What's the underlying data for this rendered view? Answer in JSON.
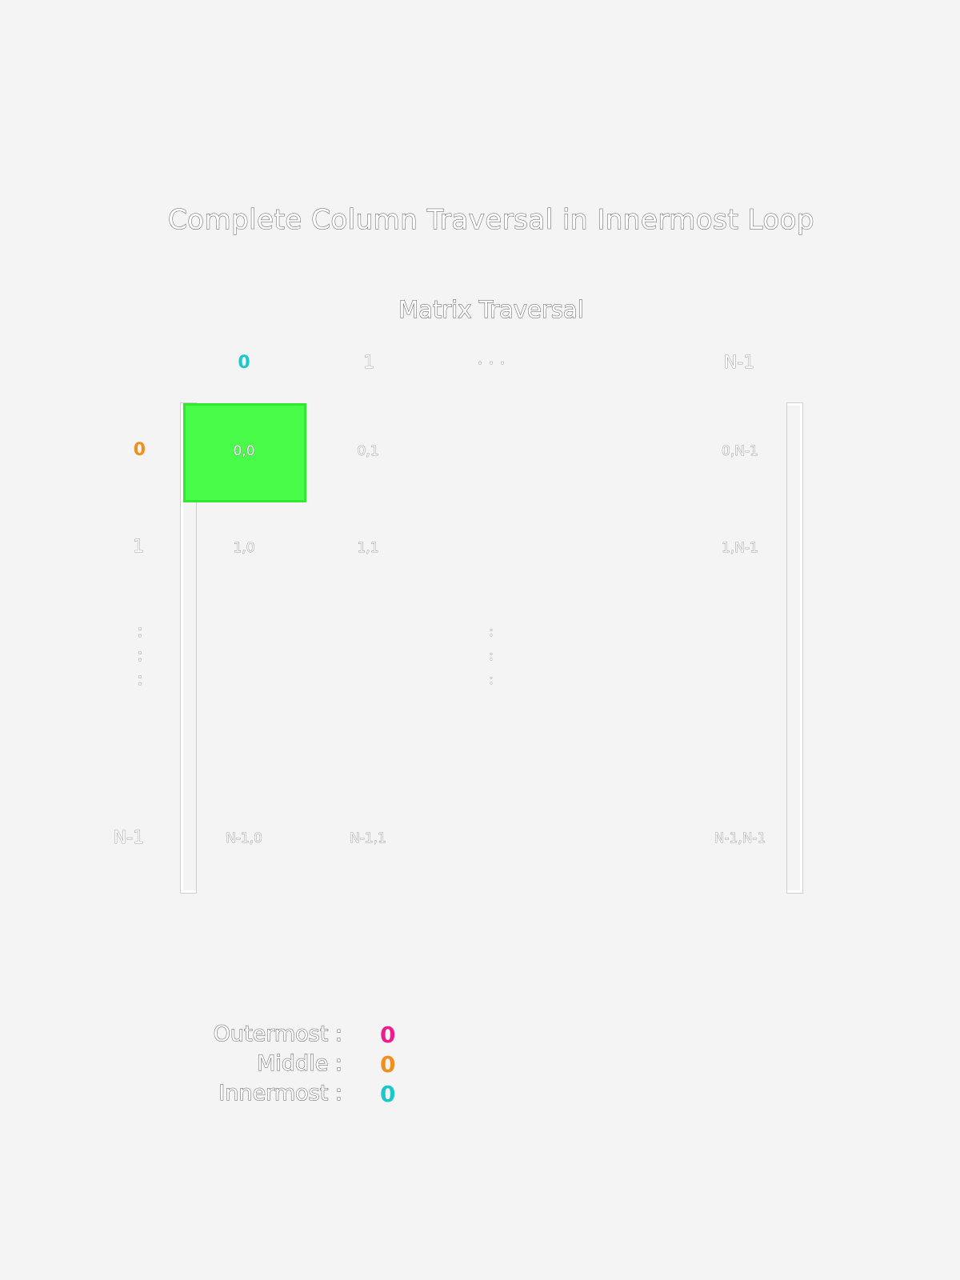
{
  "title": "Complete Column Traversal in Innermost Loop",
  "matrix": {
    "title": "Matrix Traversal",
    "column_headers": [
      "0",
      "1",
      ". . .",
      "N-1"
    ],
    "row_headers": [
      "0",
      "1",
      ":",
      "N-1"
    ],
    "cells": {
      "r0": [
        "0,0",
        "0,1",
        "0,N-1"
      ],
      "r1": [
        "1,0",
        "1,1",
        "1,N-1"
      ],
      "rlast": [
        "N-1,0",
        "N-1,1",
        "N-1,N-1"
      ]
    },
    "middle_ellipsis": ":",
    "active_cell": "0,0",
    "active_color": "#4afc4a"
  },
  "legend": {
    "outermost_label": "Outermost :",
    "outermost_value": "0",
    "middle_label": "Middle :",
    "middle_value": "0",
    "innermost_label": "Innermost :",
    "innermost_value": "0"
  },
  "colors": {
    "outermost": "#ee1c8d",
    "middle": "#f28e1c",
    "innermost": "#19c9c9",
    "background": "#f4f4f4"
  }
}
